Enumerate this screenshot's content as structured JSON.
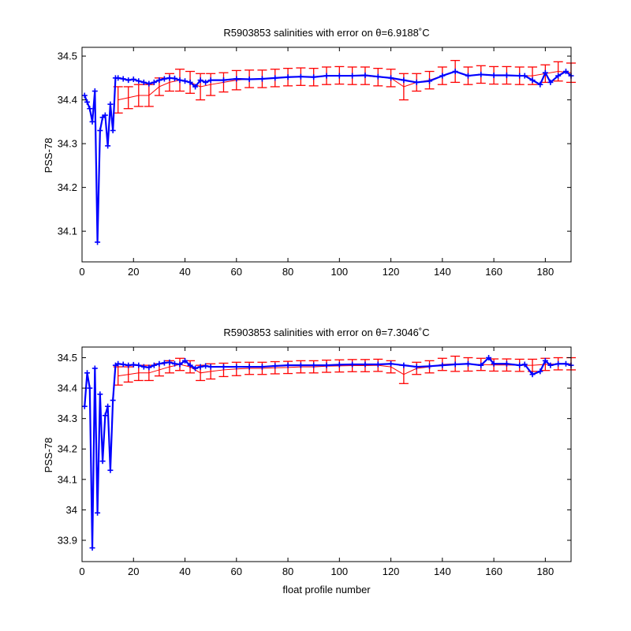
{
  "colors": {
    "error_bars": "#ff0000",
    "series": "#0000ff",
    "axes": "#000000"
  },
  "chart_data": [
    {
      "type": "line",
      "title": "R5903853 salinities with error on θ=6.9188˚C",
      "xlabel": "",
      "ylabel": "PSS-78",
      "xlim": [
        0,
        190
      ],
      "ylim": [
        34.03,
        34.52
      ],
      "xticks": [
        0,
        20,
        40,
        60,
        80,
        100,
        120,
        140,
        160,
        180
      ],
      "yticks": [
        34.1,
        34.2,
        34.3,
        34.4,
        34.5
      ],
      "ytick_labels": [
        "34.1",
        "34.2",
        "34.3",
        "34.4",
        "34.5"
      ],
      "grid": false,
      "series": [
        {
          "kind": "line-with-markers",
          "x": [
            1,
            2,
            3,
            4,
            5,
            6,
            7,
            8,
            9,
            10,
            11,
            12,
            13,
            14,
            16,
            18,
            20,
            22,
            24,
            26,
            28,
            30,
            32,
            34,
            36,
            38,
            40,
            42,
            44,
            46,
            48,
            50,
            55,
            60,
            65,
            70,
            75,
            80,
            85,
            90,
            95,
            100,
            105,
            110,
            115,
            120,
            125,
            130,
            135,
            140,
            145,
            150,
            155,
            160,
            165,
            170,
            172,
            175,
            178,
            180,
            182,
            185,
            188,
            190
          ],
          "y": [
            34.41,
            34.395,
            34.38,
            34.35,
            34.42,
            34.075,
            34.33,
            34.36,
            34.365,
            34.295,
            34.39,
            34.33,
            34.45,
            34.45,
            34.448,
            34.445,
            34.447,
            34.443,
            34.44,
            34.437,
            34.44,
            34.445,
            34.448,
            34.45,
            34.449,
            34.445,
            34.443,
            34.44,
            34.43,
            34.445,
            34.44,
            34.445,
            34.445,
            34.448,
            34.447,
            34.448,
            34.45,
            34.452,
            34.453,
            34.452,
            34.455,
            34.455,
            34.455,
            34.456,
            34.453,
            34.45,
            34.445,
            34.44,
            34.443,
            34.455,
            34.465,
            34.455,
            34.458,
            34.456,
            34.456,
            34.455,
            34.455,
            34.445,
            34.435,
            34.462,
            34.44,
            34.455,
            34.465,
            34.455
          ]
        },
        {
          "kind": "error-bars",
          "x": [
            14,
            18,
            22,
            26,
            30,
            34,
            38,
            42,
            46,
            50,
            55,
            60,
            65,
            70,
            75,
            80,
            85,
            90,
            95,
            100,
            105,
            110,
            115,
            120,
            125,
            130,
            135,
            140,
            145,
            150,
            155,
            160,
            165,
            170,
            175,
            180,
            185,
            190
          ],
          "y": [
            34.4,
            34.405,
            34.41,
            34.41,
            34.43,
            34.44,
            34.445,
            34.44,
            34.43,
            34.435,
            34.44,
            34.445,
            34.448,
            34.448,
            34.45,
            34.452,
            34.453,
            34.452,
            34.455,
            34.456,
            34.455,
            34.455,
            34.452,
            34.45,
            34.43,
            34.44,
            34.445,
            34.455,
            34.465,
            34.455,
            34.458,
            34.456,
            34.456,
            34.455,
            34.455,
            34.46,
            34.465,
            34.462
          ],
          "err": [
            0.03,
            0.025,
            0.025,
            0.025,
            0.02,
            0.02,
            0.025,
            0.025,
            0.03,
            0.025,
            0.022,
            0.022,
            0.02,
            0.02,
            0.02,
            0.02,
            0.02,
            0.02,
            0.02,
            0.02,
            0.02,
            0.02,
            0.02,
            0.02,
            0.03,
            0.02,
            0.02,
            0.02,
            0.025,
            0.02,
            0.02,
            0.02,
            0.02,
            0.02,
            0.02,
            0.02,
            0.022,
            0.022
          ]
        }
      ]
    },
    {
      "type": "line",
      "title": "R5903853 salinities with error on θ=7.3046˚C",
      "xlabel": "float profile number",
      "ylabel": "PSS-78",
      "xlim": [
        0,
        190
      ],
      "ylim": [
        33.83,
        34.535
      ],
      "xticks": [
        0,
        20,
        40,
        60,
        80,
        100,
        120,
        140,
        160,
        180
      ],
      "yticks": [
        33.9,
        34.0,
        34.1,
        34.2,
        34.3,
        34.4,
        34.5
      ],
      "ytick_labels": [
        "33.9",
        "34",
        "34.1",
        "34.2",
        "34.3",
        "34.4",
        "34.5"
      ],
      "grid": false,
      "series": [
        {
          "kind": "line-with-markers",
          "x": [
            1,
            2,
            3,
            4,
            5,
            6,
            7,
            8,
            9,
            10,
            11,
            12,
            13,
            14,
            16,
            18,
            20,
            22,
            24,
            26,
            28,
            30,
            32,
            34,
            36,
            38,
            40,
            42,
            44,
            46,
            48,
            50,
            55,
            60,
            65,
            70,
            75,
            80,
            85,
            90,
            95,
            100,
            105,
            110,
            115,
            120,
            125,
            130,
            135,
            140,
            145,
            150,
            155,
            158,
            160,
            165,
            170,
            172,
            175,
            178,
            180,
            182,
            185,
            188,
            190
          ],
          "y": [
            34.34,
            34.45,
            34.4,
            33.875,
            34.465,
            33.99,
            34.38,
            34.16,
            34.31,
            34.34,
            34.13,
            34.36,
            34.475,
            34.48,
            34.478,
            34.475,
            34.477,
            34.475,
            34.47,
            34.468,
            34.475,
            34.48,
            34.483,
            34.485,
            34.48,
            34.478,
            34.49,
            34.475,
            34.465,
            34.47,
            34.473,
            34.47,
            34.47,
            34.47,
            34.47,
            34.47,
            34.473,
            34.475,
            34.475,
            34.475,
            34.475,
            34.477,
            34.478,
            34.478,
            34.478,
            34.48,
            34.475,
            34.47,
            34.472,
            34.475,
            34.478,
            34.48,
            34.475,
            34.5,
            34.48,
            34.48,
            34.475,
            34.478,
            34.445,
            34.455,
            34.49,
            34.475,
            34.48,
            34.48,
            34.475
          ]
        },
        {
          "kind": "error-bars",
          "x": [
            14,
            18,
            22,
            26,
            30,
            34,
            38,
            42,
            46,
            50,
            55,
            60,
            65,
            70,
            75,
            80,
            85,
            90,
            95,
            100,
            105,
            110,
            115,
            120,
            125,
            130,
            135,
            140,
            145,
            150,
            155,
            160,
            165,
            170,
            175,
            180,
            185,
            190
          ],
          "y": [
            34.44,
            34.445,
            34.45,
            34.45,
            34.46,
            34.47,
            34.478,
            34.47,
            34.45,
            34.455,
            34.46,
            34.463,
            34.465,
            34.465,
            34.467,
            34.468,
            34.47,
            34.47,
            34.472,
            34.473,
            34.474,
            34.474,
            34.475,
            34.47,
            34.445,
            34.465,
            34.47,
            34.478,
            34.48,
            34.478,
            34.478,
            34.476,
            34.476,
            34.475,
            34.475,
            34.478,
            34.48,
            34.48
          ],
          "err": [
            0.03,
            0.025,
            0.025,
            0.025,
            0.02,
            0.02,
            0.02,
            0.02,
            0.025,
            0.025,
            0.022,
            0.022,
            0.02,
            0.02,
            0.02,
            0.02,
            0.02,
            0.02,
            0.02,
            0.02,
            0.02,
            0.02,
            0.02,
            0.02,
            0.03,
            0.02,
            0.02,
            0.02,
            0.025,
            0.022,
            0.02,
            0.02,
            0.02,
            0.02,
            0.02,
            0.02,
            0.02,
            0.02
          ]
        }
      ]
    }
  ]
}
